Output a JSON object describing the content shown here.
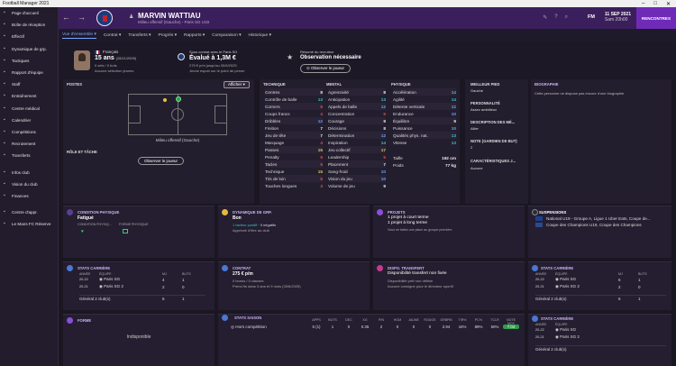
{
  "window": {
    "title": "Football Manager 2021"
  },
  "sidebar": [
    {
      "label": "Page d'accueil",
      "icon": "home-icon"
    },
    {
      "label": "Boîte de réception",
      "icon": "inbox-icon"
    },
    {
      "label": "Effectif",
      "icon": "squad-icon"
    },
    {
      "label": "Dynamique de grp.",
      "icon": "dynamics-icon"
    },
    {
      "label": "Tactiques",
      "icon": "tactics-icon"
    },
    {
      "label": "Rapport d'équipe",
      "icon": "report-icon"
    },
    {
      "label": "Staff",
      "icon": "staff-icon"
    },
    {
      "label": "Entraînement",
      "icon": "training-icon"
    },
    {
      "label": "Centre médical",
      "icon": "medical-icon"
    },
    {
      "label": "Calendrier",
      "icon": "calendar-icon"
    },
    {
      "label": "Compétitions",
      "icon": "trophy-icon"
    },
    {
      "label": "Recrutement",
      "icon": "scouting-icon"
    },
    {
      "label": "Transferts",
      "icon": "transfer-icon"
    },
    {
      "label": "Infos club",
      "icon": "club-icon"
    },
    {
      "label": "Vision du club",
      "icon": "vision-icon"
    },
    {
      "label": "Finances",
      "icon": "finance-icon"
    },
    {
      "label": "Centre d'appr.",
      "icon": "dev-centre-icon"
    },
    {
      "label": "Le Mans FC Réserve",
      "icon": "reserve-icon"
    }
  ],
  "header": {
    "player_name": "MARVIN WATTIAU",
    "player_sub": "Milieu offensif (Gauche) - Paris SG U19",
    "fm_label": "FM",
    "date": "11 SEP 2021",
    "time": "Sam 20h00",
    "continue_label": "RENCONTRES"
  },
  "tabs": [
    "Vue d'ensemble",
    "Contrat",
    "Transferts",
    "Progrès",
    "Rapports",
    "Comparaison",
    "Historique"
  ],
  "profile": {
    "nationality": "Français",
    "age": "15 ans",
    "dob": "(28/11/2005)",
    "caps": "0 sels / 0 buts",
    "youth": "Aucune sélection jeunes",
    "contract_top": "Sous contrat avec le Paris SG",
    "value": "Évalué à 1,3M €",
    "wage": "275 € p/m jusqu'au 30/6/2025",
    "contract_note": "Jeune espoir sur le point de percer",
    "scout_top": "Résumé du recruteur",
    "scout_value": "Observation nécessaire",
    "scout_button": "Observer le joueur"
  },
  "positions": {
    "label": "POSTES",
    "show_button": "Afficher",
    "position_name": "Milieu offensif (Gauche)",
    "role_label": "RÔLE ET TÂCHE",
    "observe_button": "Observer le joueur"
  },
  "technique": {
    "title": "TECHNIQUE",
    "items": [
      [
        "Centres",
        "8"
      ],
      [
        "Contrôle de balle",
        "13"
      ],
      [
        "Corners",
        "5"
      ],
      [
        "Coups francs",
        "4"
      ],
      [
        "Dribbles",
        "12"
      ],
      [
        "Finition",
        "7"
      ],
      [
        "Jeu de tête",
        "7"
      ],
      [
        "Marquage",
        "4"
      ],
      [
        "Passes",
        "15"
      ],
      [
        "Penalty",
        "5"
      ],
      [
        "Tacles",
        "5"
      ],
      [
        "Technique",
        "15"
      ],
      [
        "Tirs de loin",
        "5"
      ],
      [
        "Touches longues",
        "3"
      ]
    ]
  },
  "mental": {
    "title": "MENTAL",
    "items": [
      [
        "Agressivité",
        "8"
      ],
      [
        "Anticipation",
        "13"
      ],
      [
        "Appels de balle",
        "12"
      ],
      [
        "Concentration",
        "5"
      ],
      [
        "Courage",
        "9"
      ],
      [
        "Décisions",
        "8"
      ],
      [
        "Détermination",
        "12"
      ],
      [
        "Inspiration",
        "14"
      ],
      [
        "Jeu collectif",
        "17"
      ],
      [
        "Leadership",
        "5"
      ],
      [
        "Placement",
        "7"
      ],
      [
        "Sang-froid",
        "10"
      ],
      [
        "Vision du jeu",
        "10"
      ],
      [
        "Volume de jeu",
        "9"
      ]
    ]
  },
  "physique": {
    "title": "PHYSIQUE",
    "items": [
      [
        "Accélération",
        "14"
      ],
      [
        "Agilité",
        "14"
      ],
      [
        "Détente verticale",
        "12"
      ],
      [
        "Endurance",
        "10"
      ],
      [
        "Équilibre",
        "9"
      ],
      [
        "Puissance",
        "10"
      ],
      [
        "Qualités phys. nat.",
        "13"
      ],
      [
        "Vitesse",
        "13"
      ]
    ],
    "height_label": "Taille",
    "height": "192 cm",
    "weight_label": "Poids",
    "weight": "77 kg"
  },
  "info": {
    "foot_label": "MEILLEUR PIED",
    "foot": "Gauche",
    "personality_label": "PERSONNALITÉ",
    "personality": "Assez ambitieux",
    "media_label": "DESCRIPTION DES MÉ...",
    "media": "Ailier",
    "gk_label": "NOTE (GARDIEN DE BUT)",
    "gk": "2",
    "traits_label": "CARACTÉRISTIQUES J...",
    "traits": "Aucune",
    "bio_label": "BIOGRAPHIE",
    "bio": "Cette personne ne dispose pas encore d'une biographie."
  },
  "cards_row1": {
    "condition": {
      "title": "CONDITION PHYSIQUE",
      "value": "Fatigué",
      "col1": "CONDITION PHYSIQ...",
      "col2": "FORME PHYSIQUE"
    },
    "dynamics": {
      "title": "DYNAMIQUE DE GRP.",
      "value": "Bon",
      "line1": "1 facteur positif",
      "line1b": "0 négatifs",
      "line2": "Apprécié d'être au club"
    },
    "projects": {
      "title": "PROJETS",
      "value1": "1 projet à court terme",
      "value2": "1 projet à long terme",
      "note": "Vous ne faites une place au groupe première"
    },
    "suspensions": {
      "title": "SUSPENSIONS",
      "l1": "National U19 - Groupe A, Ligue 1 Uber Eats, Coupe de...",
      "l2": "Coupe des Champions U19, Coupe des Champions"
    }
  },
  "career1": {
    "title": "STATS CARRIÈRE",
    "head": [
      "ANNÉE",
      "ÉQUIPE",
      "MJ",
      "BUTS"
    ],
    "rows": [
      [
        "20-22",
        "Paris SG",
        "4",
        "1"
      ],
      [
        "20-21",
        "Paris SG 2",
        "2",
        "0"
      ]
    ],
    "total": [
      "Général 2 club(s)",
      "6",
      "1"
    ]
  },
  "contract": {
    "title": "CONTRAT",
    "value": "275 € p/m",
    "l1": "0 bonus / 0 clauses",
    "l2": "Prend fin dans 3 ans et 9 mois (30/6/2025)"
  },
  "transfer": {
    "title": "DISPO. TRANSFERT",
    "value": "Disponibilité transfert non fixée",
    "l1": "Disponibilité prêt non définie",
    "l2": "Aucune consigne pour le directeur sportif"
  },
  "career2": {
    "title": "STATS CARRIÈRE",
    "head": [
      "ANNÉE",
      "ÉQUIPE",
      "MJ",
      "BUTS"
    ],
    "rows": [
      [
        "20-22",
        "Paris SG",
        "6",
        "1"
      ],
      [
        "20-21",
        "Paris SG 2",
        "2",
        "0"
      ]
    ],
    "total": [
      "Général 2 club(s)",
      "6",
      "1"
    ]
  },
  "form": {
    "title": "FORME",
    "value": "Indisponible"
  },
  "season": {
    "title": "STATS SAISON",
    "head": [
      "APPS",
      "BUTS",
      "DEC",
      "XG",
      "P/N",
      "HOM",
      "JAUNE",
      "ROUGE",
      "DRBPM",
      "TIR%",
      "PC%",
      "TCLR",
      "NOTE MOY"
    ],
    "row_label": "Hors compétition",
    "row": [
      "5 (1)",
      "1",
      "0",
      "0.35",
      "2",
      "0",
      "0",
      "0",
      "2.94",
      "44%",
      "89%",
      "50%",
      "7.04"
    ]
  },
  "career3": {
    "title": "STATS CARRIÈRE",
    "head": [
      "ANNÉE",
      "ÉQUIPE"
    ],
    "rows": [
      [
        "20-22",
        "Paris SG"
      ],
      [
        "20-21",
        "Paris SG 2"
      ]
    ],
    "total": "Général 2 club(s)"
  }
}
